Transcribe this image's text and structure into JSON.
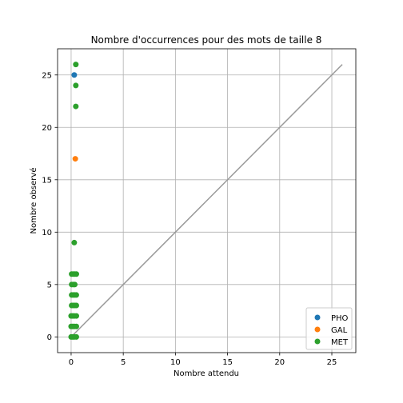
{
  "chart_data": {
    "type": "scatter",
    "title": "Nombre d'occurrences pour des mots de taille 8",
    "xlabel": "Nombre attendu",
    "ylabel": "Nombre observé",
    "xlim": [
      -1.3,
      27.3
    ],
    "ylim": [
      -1.5,
      27.5
    ],
    "xticks": [
      0,
      5,
      10,
      15,
      20,
      25
    ],
    "yticks": [
      0,
      5,
      10,
      15,
      20,
      25
    ],
    "grid": true,
    "legend_position": "lower-right",
    "reference_line": {
      "x": [
        0,
        26
      ],
      "y": [
        0,
        26
      ],
      "color": "#999999"
    },
    "series": [
      {
        "name": "PHO",
        "color": "#1f77b4",
        "points": [
          [
            0.3,
            25
          ]
        ]
      },
      {
        "name": "GAL",
        "color": "#ff7f0e",
        "points": [
          [
            0.4,
            17
          ]
        ]
      },
      {
        "name": "MET",
        "color": "#2ca02c",
        "points": [
          [
            0.45,
            26
          ],
          [
            0.45,
            24
          ],
          [
            0.45,
            22
          ],
          [
            0.3,
            9
          ],
          [
            0.05,
            6
          ],
          [
            0.2,
            6
          ],
          [
            0.35,
            6
          ],
          [
            0.5,
            6
          ],
          [
            0.05,
            5
          ],
          [
            0.2,
            5
          ],
          [
            0.35,
            5
          ],
          [
            0.05,
            4
          ],
          [
            0.2,
            4
          ],
          [
            0.35,
            4
          ],
          [
            0.5,
            4
          ],
          [
            0.05,
            3
          ],
          [
            0.2,
            3
          ],
          [
            0.35,
            3
          ],
          [
            0.5,
            3
          ],
          [
            0.0,
            2
          ],
          [
            0.15,
            2
          ],
          [
            0.3,
            2
          ],
          [
            0.5,
            2
          ],
          [
            0.0,
            1
          ],
          [
            0.15,
            1
          ],
          [
            0.3,
            1
          ],
          [
            0.5,
            1
          ],
          [
            0.0,
            0
          ],
          [
            0.15,
            0
          ],
          [
            0.3,
            0
          ],
          [
            0.5,
            0
          ]
        ]
      }
    ]
  }
}
